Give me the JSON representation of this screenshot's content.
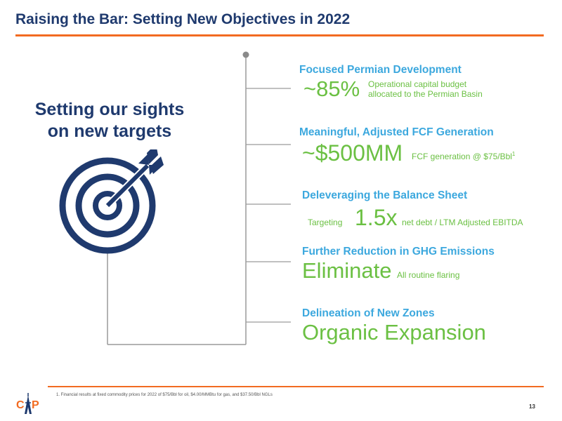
{
  "slide": {
    "title": "Raising the Bar: Setting New Objectives in 2022",
    "page_number": "13",
    "footnote": "1. Financial results at fixed commodity prices for 2022 of $75/Bbl for oil, $4.00/MMBtu for gas, and $37.50/Bbl NGLs",
    "logo_icon": "cap-logo-icon"
  },
  "tagline": {
    "line1": "Setting our sights",
    "line2": "on new targets"
  },
  "colors": {
    "title": "#1f3a6e",
    "accent_orange": "#f26b21",
    "heading_blue": "#3ca8de",
    "value_green": "#6bc043",
    "connector_gray": "#9a9a9a"
  },
  "objectives": [
    {
      "heading": "Focused Permian Development",
      "value": "~85%",
      "detail_line1": "Operational capital budget",
      "detail_line2": "allocated to the Permian Basin"
    },
    {
      "heading": "Meaningful, Adjusted FCF Generation",
      "value": "~$500MM",
      "detail": "FCF generation @ $75/Bbl",
      "footnote_ref": "1"
    },
    {
      "heading": "Deleveraging the Balance Sheet",
      "prefix": "Targeting",
      "value": "1.5x",
      "detail": "net debt / LTM Adjusted EBITDA"
    },
    {
      "heading": "Further Reduction in GHG Emissions",
      "value": "Eliminate",
      "detail": "All routine flaring"
    },
    {
      "heading": "Delineation of New Zones",
      "value": "Organic Expansion"
    }
  ]
}
